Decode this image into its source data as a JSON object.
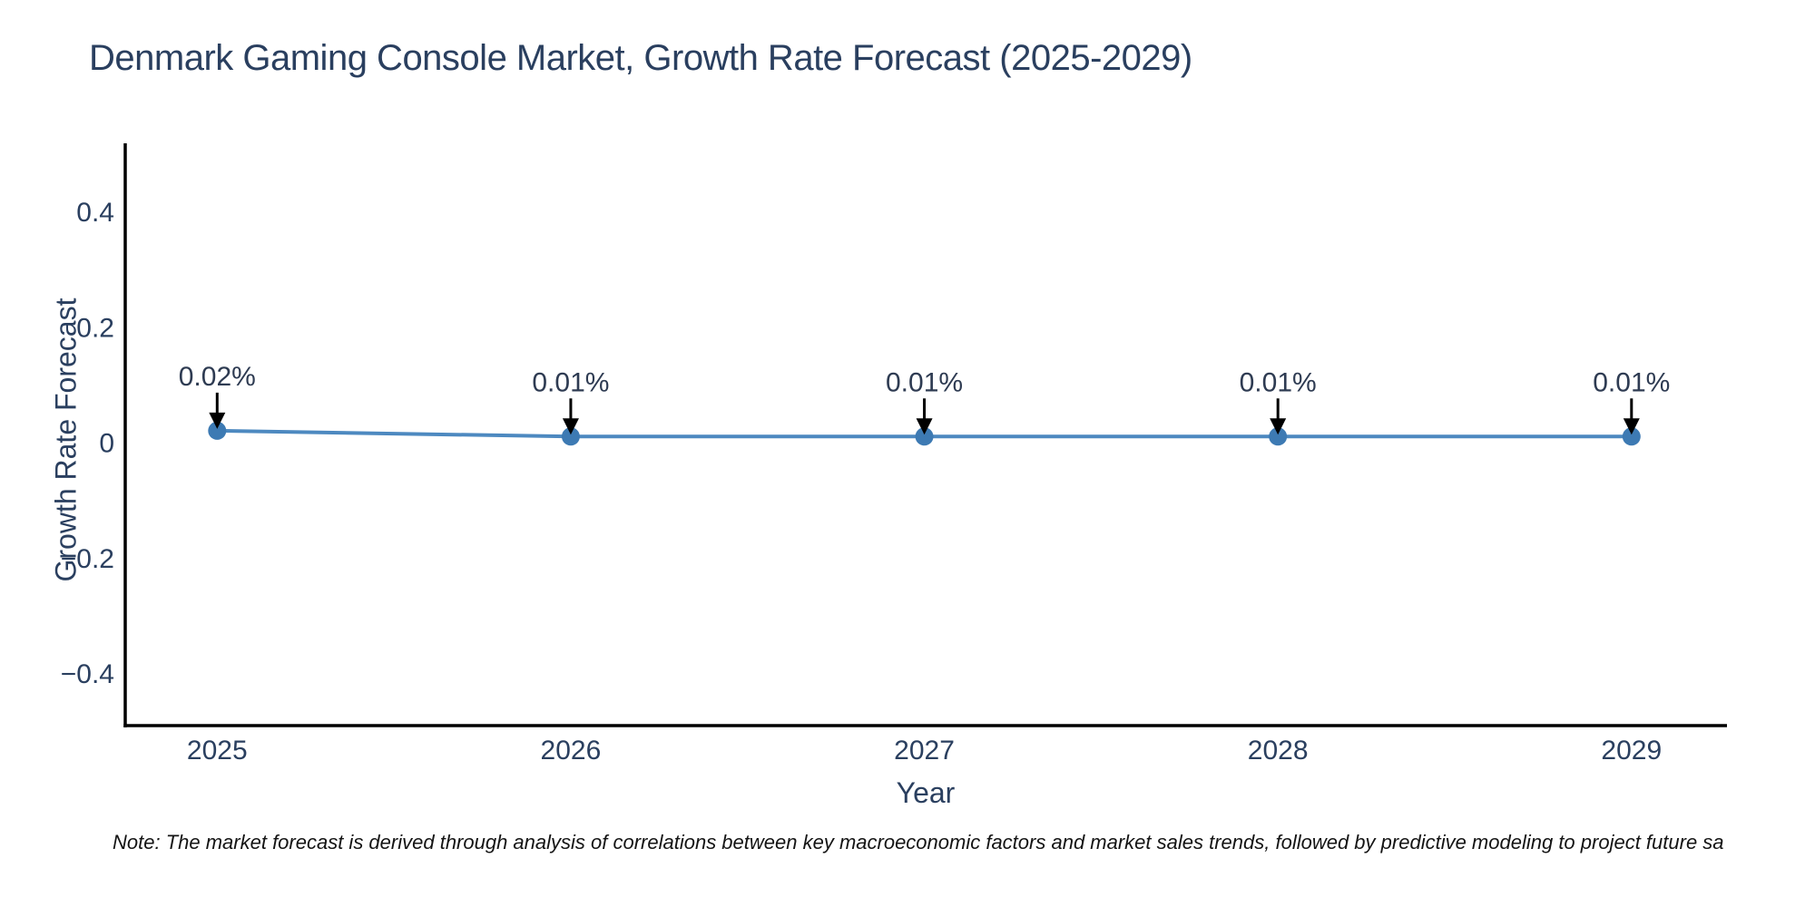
{
  "title": {
    "text": "Denmark Gaming Console Market, Growth Rate Forecast (2025-2029)"
  },
  "note": {
    "text": "Note: The market forecast is derived through analysis of correlations between key macroeconomic factors and market sales trends, followed by predictive modeling to project future sa"
  },
  "chart_data": {
    "type": "line",
    "title": "Denmark Gaming Console Market, Growth Rate Forecast (2025-2029)",
    "xlabel": "Year",
    "ylabel": "Growth Rate Forecast",
    "x": [
      2025,
      2026,
      2027,
      2028,
      2029
    ],
    "series": [
      {
        "name": "Growth Rate Forecast",
        "values": [
          0.02,
          0.01,
          0.01,
          0.01,
          0.01
        ]
      }
    ],
    "annotations": [
      "0.02%",
      "0.01%",
      "0.01%",
      "0.01%",
      "0.01%"
    ],
    "x_tick_labels": [
      "2025",
      "2026",
      "2027",
      "2028",
      "2029"
    ],
    "y_ticks": [
      0.4,
      0.2,
      0,
      -0.2,
      -0.4
    ],
    "y_tick_labels": [
      "0.4",
      "0.2",
      "0",
      "−0.2",
      "−0.4"
    ],
    "xlim": [
      2024.74,
      2029.27
    ],
    "ylim": [
      -0.491,
      0.515
    ],
    "grid": false,
    "legend": "none",
    "marker_style": "circle-with-down-arrow-annotation",
    "colors": {
      "line": "#4d89c0",
      "marker": "#3d7ab3",
      "arrow": "#000000",
      "axis": "#000000",
      "tick_text": "#2a3f5f",
      "annotation_text": "#2e3b52"
    }
  }
}
